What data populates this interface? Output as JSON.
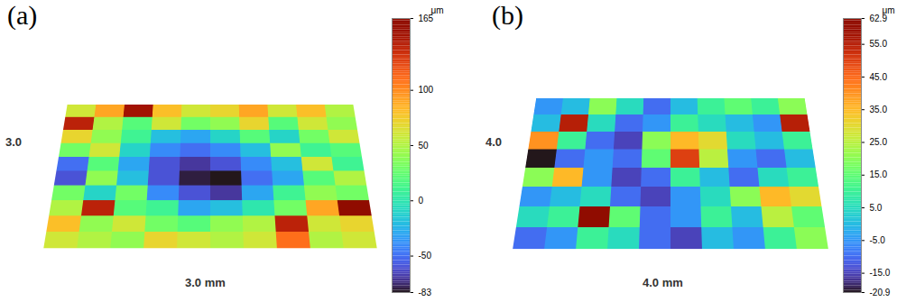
{
  "chart_data": [
    {
      "type": "heatmap",
      "title": "(a)",
      "x_label": "3.0 mm",
      "y_label": "3.0",
      "cells": [
        [
          60,
          90,
          150,
          80,
          60,
          70,
          90,
          60,
          80,
          50
        ],
        [
          140,
          50,
          20,
          60,
          30,
          40,
          70,
          20,
          60,
          40
        ],
        [
          70,
          40,
          10,
          -20,
          -30,
          -10,
          20,
          -10,
          30,
          60
        ],
        [
          30,
          60,
          -10,
          -40,
          -50,
          -40,
          -20,
          40,
          10,
          20
        ],
        [
          -50,
          20,
          -30,
          -60,
          -70,
          -60,
          -40,
          -20,
          60,
          10
        ],
        [
          -60,
          40,
          -20,
          -60,
          -80,
          -83,
          -50,
          -30,
          20,
          50
        ],
        [
          30,
          -10,
          30,
          -40,
          -60,
          -70,
          -30,
          10,
          40,
          30
        ],
        [
          50,
          140,
          20,
          10,
          -30,
          -20,
          0,
          30,
          90,
          165
        ],
        [
          80,
          40,
          60,
          30,
          20,
          40,
          50,
          140,
          60,
          70
        ],
        [
          60,
          50,
          40,
          70,
          60,
          50,
          60,
          110,
          50,
          60
        ]
      ],
      "colorbar": {
        "label": "μm",
        "range": [
          -83,
          165
        ],
        "ticks": [
          165,
          100,
          50,
          0,
          -50,
          -83
        ]
      }
    },
    {
      "type": "heatmap",
      "title": "(b)",
      "x_label": "4.0 mm",
      "y_label": "4.0",
      "cells": [
        [
          -5,
          0,
          20,
          5,
          -10,
          0,
          10,
          15,
          10,
          20
        ],
        [
          0,
          55,
          5,
          -10,
          -5,
          10,
          5,
          0,
          -5,
          55
        ],
        [
          40,
          10,
          -10,
          -15,
          20,
          35,
          30,
          5,
          0,
          10
        ],
        [
          -20.9,
          -10,
          -5,
          -10,
          15,
          50,
          25,
          -5,
          -10,
          0
        ],
        [
          20,
          35,
          -5,
          -15,
          -10,
          10,
          0,
          -10,
          5,
          10
        ],
        [
          -5,
          0,
          5,
          -10,
          -15,
          -5,
          5,
          20,
          35,
          30
        ],
        [
          5,
          10,
          62.9,
          15,
          -10,
          -5,
          10,
          0,
          25,
          15
        ],
        [
          -10,
          -5,
          10,
          5,
          -10,
          -15,
          0,
          -5,
          10,
          20
        ]
      ],
      "colorbar": {
        "label": "μm",
        "range": [
          -20.9,
          62.9
        ],
        "ticks": [
          62.9,
          {
            "value": 55,
            "label": "55.0"
          },
          {
            "value": 45,
            "label": "45.0"
          },
          {
            "value": 35,
            "label": "35.0"
          },
          {
            "value": 25,
            "label": "25.0"
          },
          {
            "value": 15,
            "label": "15.0"
          },
          {
            "value": 5,
            "label": "5.0"
          },
          {
            "value": -5,
            "label": "-5.0"
          },
          {
            "value": -15,
            "label": "-15.0"
          },
          -20.9
        ]
      }
    }
  ]
}
